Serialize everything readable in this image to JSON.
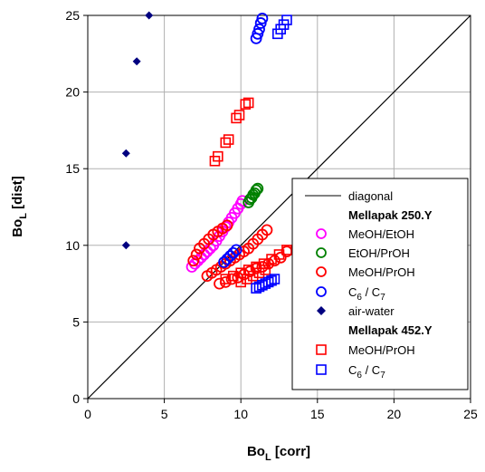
{
  "chart_data": {
    "type": "scatter",
    "title": "",
    "xlabel": {
      "main": "Bo",
      "sub": "L",
      "rest": " [corr]"
    },
    "ylabel": {
      "main": "Bo",
      "sub": "L",
      "rest": " [dist]"
    },
    "xlim": [
      0,
      25
    ],
    "ylim": [
      0,
      25
    ],
    "xticks": [
      "0",
      "5",
      "10",
      "15",
      "20",
      "25"
    ],
    "yticks": [
      "0",
      "5",
      "10",
      "15",
      "20",
      "25"
    ],
    "grid": true,
    "legend_position": "bottom-right",
    "diagonal": {
      "name": "diagonal",
      "x": [
        0,
        25
      ],
      "y": [
        0,
        25
      ],
      "color": "#000000"
    },
    "groups": [
      {
        "title": "Mellapak 250.Y",
        "series": [
          {
            "name": "MeOH/EtOH",
            "marker": "circle",
            "color": "#ff00ff",
            "x": [
              6.8,
              7.0,
              7.2,
              7.4,
              7.6,
              7.8,
              8.0,
              8.2,
              8.4,
              8.6,
              8.8,
              9.0,
              9.2,
              9.4,
              9.6,
              9.8,
              10.0,
              10.1
            ],
            "y": [
              8.6,
              8.8,
              9.0,
              9.2,
              9.4,
              9.6,
              9.8,
              10.0,
              10.3,
              10.6,
              10.9,
              11.2,
              11.5,
              11.8,
              12.1,
              12.4,
              12.7,
              12.9
            ]
          },
          {
            "name": "EtOH/PrOH",
            "marker": "circle",
            "color": "#008000",
            "x": [
              10.5,
              10.6,
              10.7,
              10.8,
              10.9,
              11.0,
              11.1
            ],
            "y": [
              12.8,
              13.0,
              13.1,
              13.3,
              13.4,
              13.6,
              13.7
            ]
          },
          {
            "name": "MeOH/PrOH",
            "marker": "circle",
            "color": "#ff0000",
            "x": [
              6.9,
              7.1,
              7.3,
              7.6,
              7.9,
              8.2,
              8.5,
              8.8,
              9.1,
              7.8,
              8.1,
              8.4,
              8.7,
              9.0,
              9.3,
              9.6,
              9.9,
              10.2,
              10.5,
              10.8,
              11.1,
              11.4,
              11.7,
              8.6,
              9.0,
              9.4,
              9.8,
              10.2,
              10.6,
              11.0,
              11.4,
              11.8,
              12.2,
              12.6,
              13.0
            ],
            "y": [
              9.0,
              9.4,
              9.8,
              10.1,
              10.4,
              10.7,
              10.9,
              11.1,
              11.3,
              8.0,
              8.2,
              8.4,
              8.6,
              8.8,
              9.0,
              9.2,
              9.4,
              9.6,
              9.8,
              10.1,
              10.4,
              10.7,
              11.0,
              7.5,
              7.6,
              7.8,
              7.9,
              8.1,
              8.3,
              8.5,
              8.6,
              8.8,
              9.0,
              9.2,
              9.6
            ]
          },
          {
            "name": "C6 / C7",
            "label_main": "C",
            "label_sub1": "6",
            "label_mid": " / C",
            "label_sub2": "7",
            "marker": "circle",
            "color": "#0000ff",
            "x": [
              8.9,
              9.1,
              9.3,
              9.5,
              9.7,
              11.0,
              11.1,
              11.2,
              11.3,
              11.4
            ],
            "y": [
              8.9,
              9.1,
              9.3,
              9.5,
              9.7,
              23.5,
              23.8,
              24.1,
              24.5,
              24.8
            ]
          }
        ]
      },
      {
        "title": null,
        "series": [
          {
            "name": "air-water",
            "marker": "diamond",
            "color": "#000080",
            "x": [
              2.5,
              2.5,
              3.2,
              4.0
            ],
            "y": [
              10.0,
              16.0,
              22.0,
              25.0
            ]
          }
        ]
      },
      {
        "title": "Mellapak 452.Y",
        "series": [
          {
            "name": "MeOH/PrOH",
            "marker": "square",
            "color": "#ff0000",
            "x": [
              8.3,
              8.5,
              9.0,
              9.2,
              9.7,
              9.9,
              10.3,
              10.5,
              9.0,
              9.5,
              10.0,
              10.5,
              11.0,
              11.5,
              12.0,
              12.5,
              13.0,
              10.0,
              10.4,
              10.8,
              11.2,
              11.6
            ],
            "y": [
              15.5,
              15.8,
              16.7,
              16.9,
              18.3,
              18.5,
              19.2,
              19.3,
              7.8,
              8.0,
              8.2,
              8.4,
              8.6,
              8.8,
              9.1,
              9.4,
              9.7,
              7.6,
              7.8,
              8.0,
              8.2,
              8.4
            ]
          },
          {
            "name": "C6 / C7",
            "label_main": "C",
            "label_sub1": "6",
            "label_mid": " / C",
            "label_sub2": "7",
            "marker": "square",
            "color": "#0000ff",
            "x": [
              11.0,
              11.2,
              11.4,
              11.6,
              11.8,
              12.0,
              12.2,
              12.4,
              12.6,
              12.8,
              13.0
            ],
            "y": [
              7.2,
              7.3,
              7.4,
              7.5,
              7.6,
              7.7,
              7.8,
              23.8,
              24.1,
              24.4,
              24.7
            ]
          }
        ]
      }
    ]
  }
}
